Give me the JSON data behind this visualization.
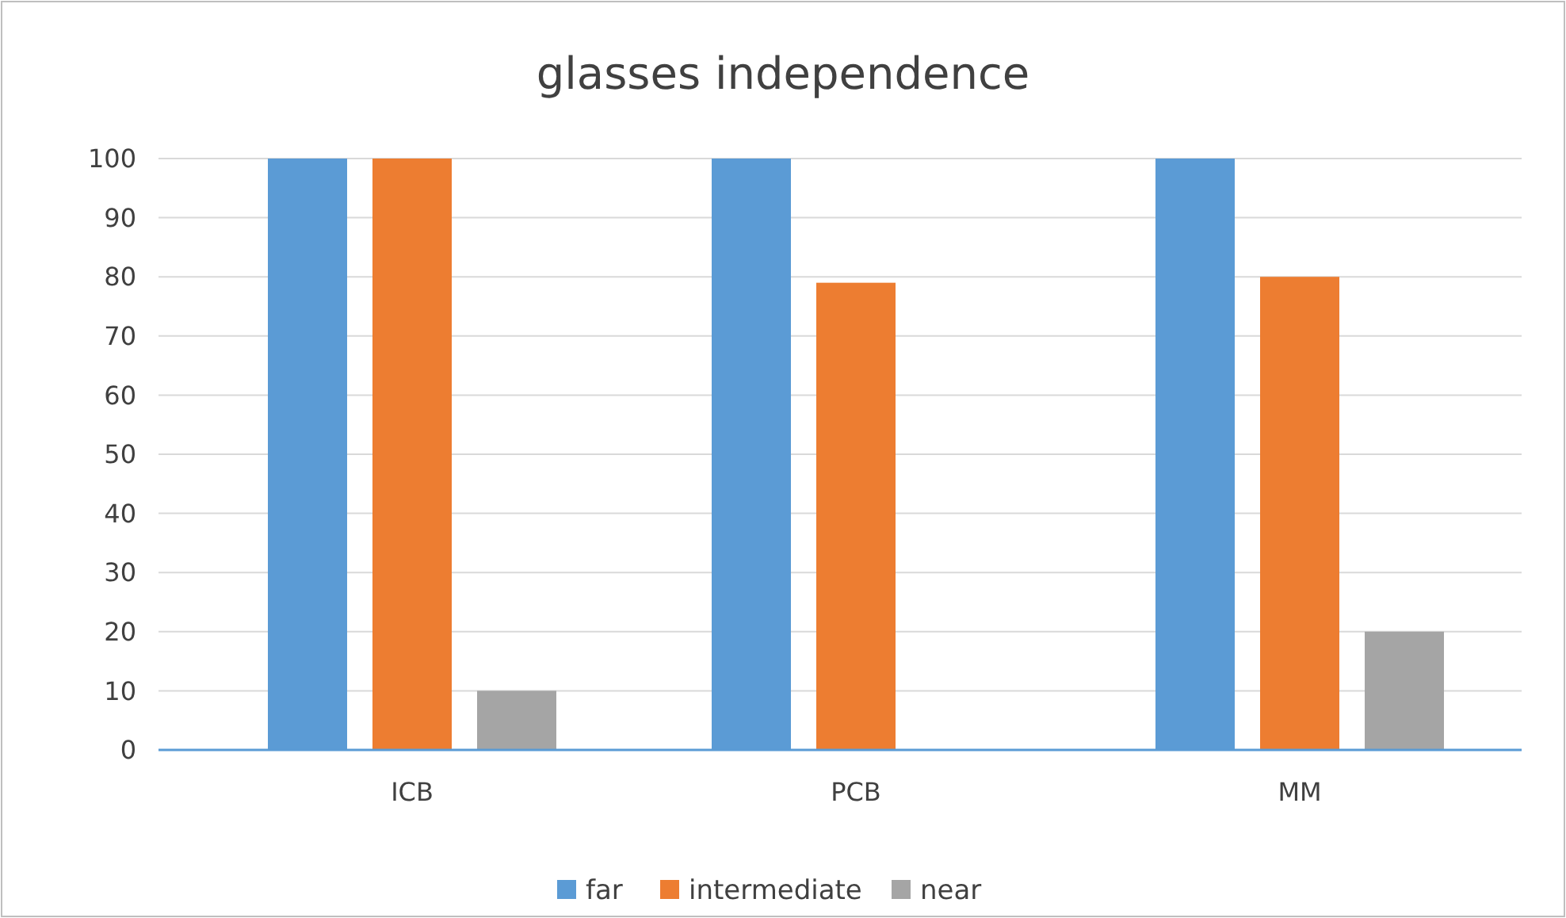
{
  "chart_data": {
    "type": "bar",
    "title": "glasses independence",
    "categories": [
      "ICB",
      "PCB",
      "MM"
    ],
    "series": [
      {
        "name": "far",
        "color": "#5b9bd5",
        "values": [
          100,
          100,
          100
        ]
      },
      {
        "name": "intermediate",
        "color": "#ed7d31",
        "values": [
          100,
          79,
          80
        ]
      },
      {
        "name": "near",
        "color": "#a5a5a5",
        "values": [
          10,
          0,
          20
        ]
      }
    ],
    "ylim": [
      0,
      100
    ],
    "yticks": [
      0,
      10,
      20,
      30,
      40,
      50,
      60,
      70,
      80,
      90,
      100
    ],
    "grid": "y",
    "legend": "bottom"
  }
}
